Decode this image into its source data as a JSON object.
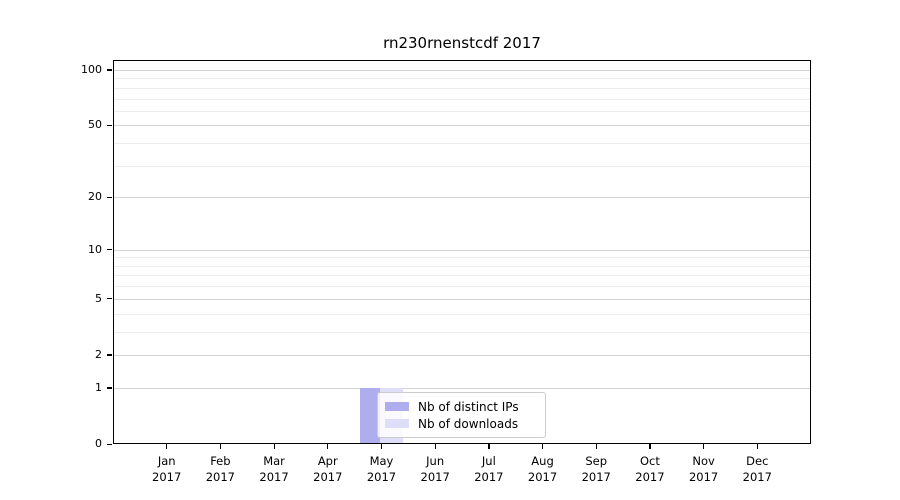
{
  "figure": {
    "background": "#ffffff",
    "spine_color": "#000000",
    "major_grid_color": "#d4d4d4",
    "minor_grid_color": "#ececec"
  },
  "chart_data": {
    "type": "bar",
    "title": "rn230rnenstcdf 2017",
    "categories": [
      "Jan",
      "Feb",
      "Mar",
      "Apr",
      "May",
      "Jun",
      "Jul",
      "Aug",
      "Sep",
      "Oct",
      "Nov",
      "Dec"
    ],
    "category_year": "2017",
    "series": [
      {
        "name": "Nb of distinct IPs",
        "color": "#aeaeef",
        "values": [
          0,
          0,
          0,
          0,
          1,
          0,
          0,
          0,
          0,
          0,
          0,
          0
        ]
      },
      {
        "name": "Nb of downloads",
        "color": "#dedef8",
        "values": [
          0,
          0,
          0,
          0,
          1,
          0,
          0,
          0,
          0,
          0,
          0,
          0
        ]
      }
    ],
    "y_scale": "log10(1+x)",
    "y_ticks": [
      0,
      1,
      2,
      5,
      10,
      20,
      50,
      100
    ],
    "y_tick_labels": [
      "0",
      "1",
      "2",
      "5",
      "10",
      "20",
      "50",
      "100"
    ],
    "y_minor_ticks": [
      3,
      4,
      6,
      7,
      8,
      9,
      30,
      40,
      60,
      70,
      80,
      90
    ],
    "ylim": [
      0,
      113
    ],
    "xlabel": "",
    "ylabel": "",
    "grid": true,
    "legend_position": "inside-bottom-center"
  }
}
